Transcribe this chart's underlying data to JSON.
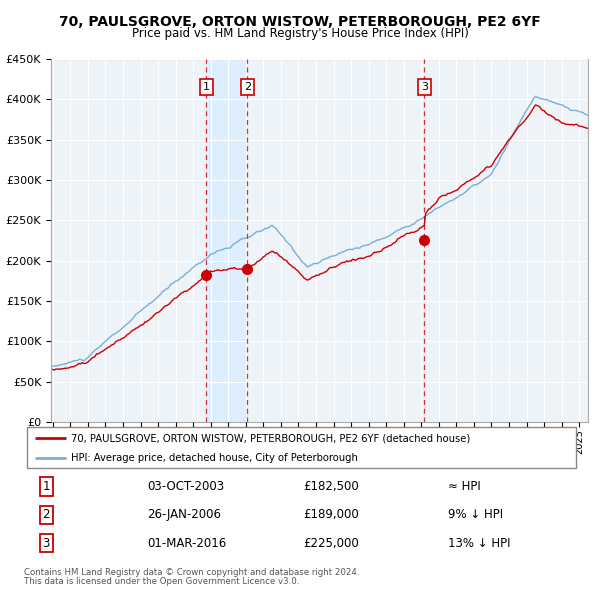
{
  "title": "70, PAULSGROVE, ORTON WISTOW, PETERBOROUGH, PE2 6YF",
  "subtitle": "Price paid vs. HM Land Registry's House Price Index (HPI)",
  "legend_line1": "70, PAULSGROVE, ORTON WISTOW, PETERBOROUGH, PE2 6YF (detached house)",
  "legend_line2": "HPI: Average price, detached house, City of Peterborough",
  "transaction_labels": [
    {
      "num": "1",
      "date_label": "03-OCT-2003",
      "price_label": "£182,500",
      "rel_label": "≈ HPI"
    },
    {
      "num": "2",
      "date_label": "26-JAN-2006",
      "price_label": "£189,000",
      "rel_label": "9% ↓ HPI"
    },
    {
      "num": "3",
      "date_label": "01-MAR-2016",
      "price_label": "£225,000",
      "rel_label": "13% ↓ HPI"
    }
  ],
  "footer1": "Contains HM Land Registry data © Crown copyright and database right 2024.",
  "footer2": "This data is licensed under the Open Government Licence v3.0.",
  "hpi_color": "#7aafd4",
  "price_color": "#cc0000",
  "marker_color": "#cc0000",
  "vline_color": "#cc0000",
  "shade_color": "#ddeeff",
  "chart_bg": "#eef3f8",
  "ylim": [
    0,
    450000
  ],
  "sale1_date": 2003.75,
  "sale1_price": 182500,
  "sale2_date": 2006.08,
  "sale2_price": 189000,
  "sale3_date": 2016.17,
  "sale3_price": 225000,
  "background_color": "#ffffff",
  "grid_color": "#cccccc"
}
